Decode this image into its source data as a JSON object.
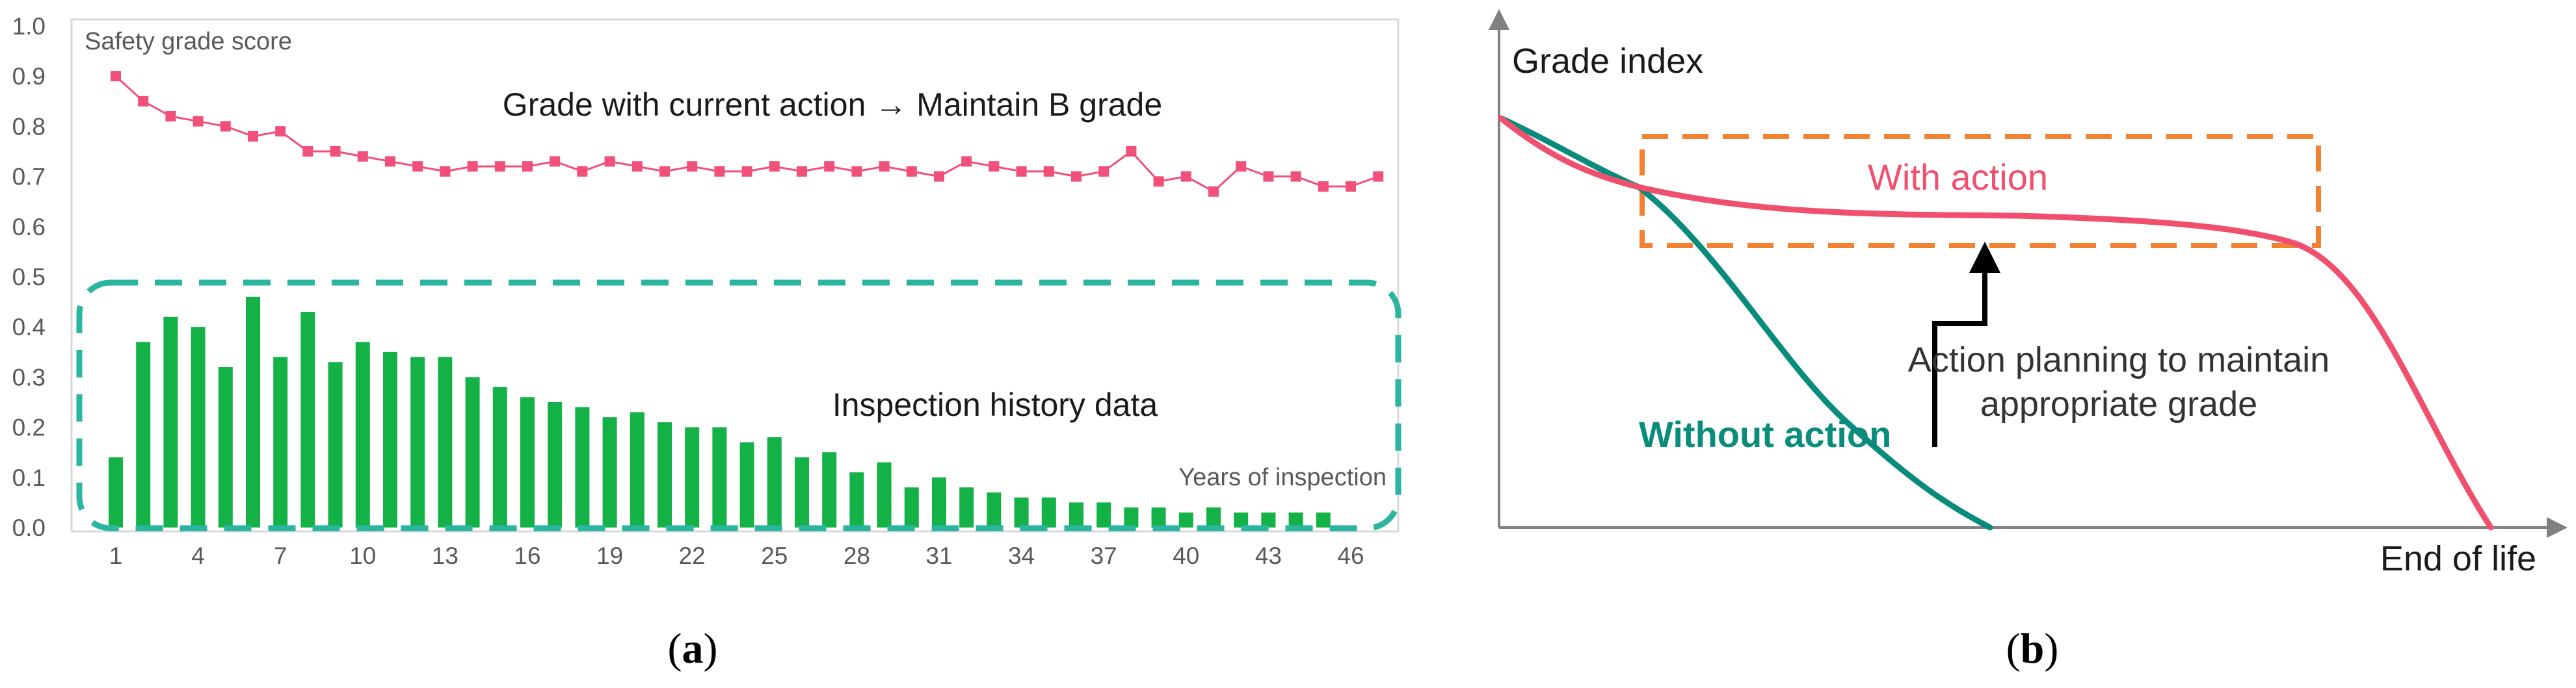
{
  "chart_data": [
    {
      "type": "bar+line",
      "panel_label": {
        "open": "(",
        "letter": "a",
        "close": ")"
      },
      "title": "",
      "xlabel": "Years of inspection",
      "ylabel": "Safety grade score",
      "ylim": [
        0,
        1
      ],
      "yticks": [
        "0.0",
        "0.1",
        "0.2",
        "0.3",
        "0.4",
        "0.5",
        "0.6",
        "0.7",
        "0.8",
        "0.9",
        "1.0"
      ],
      "xticks": [
        "1",
        "4",
        "7",
        "10",
        "13",
        "16",
        "19",
        "22",
        "25",
        "28",
        "31",
        "34",
        "37",
        "40",
        "43",
        "46"
      ],
      "grid": false,
      "annotations": {
        "line_note": "Grade with current action → Maintain B grade",
        "bar_note": "Inspection history data"
      },
      "colors": {
        "line": "#f0507a",
        "bars": "#14b246",
        "box": "#2ab5a0",
        "axis": "#d9d9d9",
        "text": "#595959"
      },
      "series": [
        {
          "type": "line",
          "values": [
            0.9,
            0.85,
            0.82,
            0.81,
            0.8,
            0.78,
            0.79,
            0.75,
            0.75,
            0.74,
            0.73,
            0.72,
            0.71,
            0.72,
            0.72,
            0.72,
            0.73,
            0.71,
            0.73,
            0.72,
            0.71,
            0.72,
            0.71,
            0.71,
            0.72,
            0.71,
            0.72,
            0.71,
            0.72,
            0.71,
            0.7,
            0.73,
            0.72,
            0.71,
            0.71,
            0.7,
            0.71,
            0.75,
            0.69,
            0.7,
            0.67,
            0.72,
            0.7,
            0.7,
            0.68,
            0.68,
            0.7
          ]
        },
        {
          "type": "bar",
          "values": [
            0.14,
            0.37,
            0.42,
            0.4,
            0.32,
            0.46,
            0.34,
            0.43,
            0.33,
            0.37,
            0.35,
            0.34,
            0.34,
            0.3,
            0.28,
            0.26,
            0.25,
            0.24,
            0.22,
            0.23,
            0.21,
            0.2,
            0.2,
            0.17,
            0.18,
            0.14,
            0.15,
            0.11,
            0.13,
            0.08,
            0.1,
            0.08,
            0.07,
            0.06,
            0.06,
            0.05,
            0.05,
            0.04,
            0.04,
            0.03,
            0.04,
            0.03,
            0.03,
            0.03,
            0.03
          ]
        }
      ]
    },
    {
      "type": "line",
      "panel_label": {
        "open": "(",
        "letter": "b",
        "close": ")"
      },
      "title": "",
      "xlabel": "End of life",
      "ylabel": "Grade index",
      "annotations": {
        "action_note_line1": "Action planning to maintain",
        "action_note_line2": "appropriate grade"
      },
      "colors": {
        "with_action": "#f0506e",
        "without_action": "#0a8c7c",
        "box": "#f08232",
        "axis": "#808080",
        "arrow": "#000000"
      },
      "series": [
        {
          "name": "With action",
          "shape": "descends slightly, holds a plateau, then drops to zero at end of life"
        },
        {
          "name": "Without action",
          "shape": "declines steadily to zero at mid life"
        }
      ]
    }
  ]
}
